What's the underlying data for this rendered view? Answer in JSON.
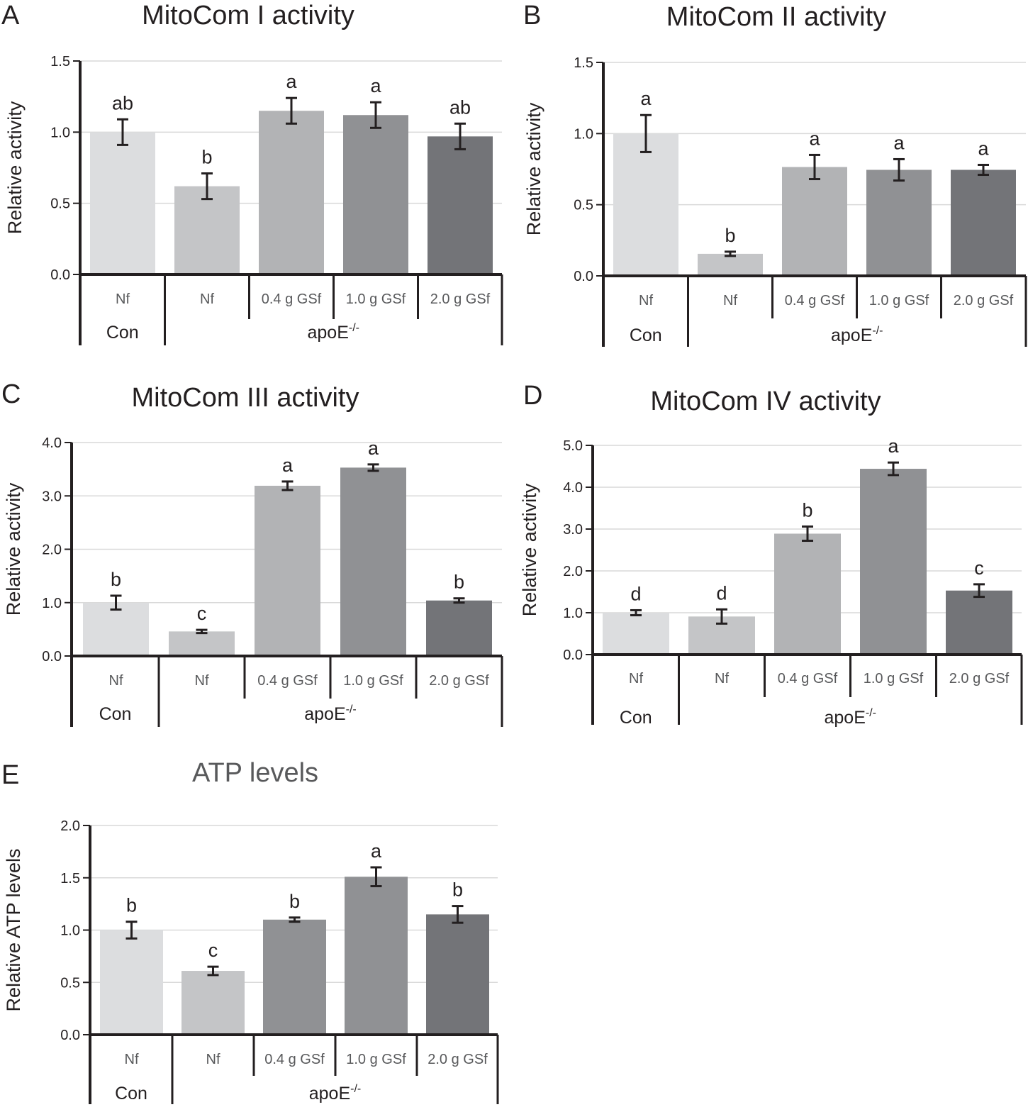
{
  "chart_data": [
    {
      "panel_label": "A",
      "type": "bar",
      "title": "MitoCom I activity",
      "ylabel": "Relative activity",
      "ylim": [
        0,
        1.5
      ],
      "yticks": [
        "0.0",
        "0.5",
        "1.0",
        "1.5"
      ],
      "grid": true,
      "categories": [
        "Nf",
        "Nf",
        "0.4 g GSf",
        "1.0 g GSf",
        "2.0 g GSf"
      ],
      "groups": [
        {
          "label": "Con",
          "count": 1
        },
        {
          "label": "apoE-/-",
          "count": 4
        }
      ],
      "values": [
        1.0,
        0.62,
        1.15,
        1.12,
        0.97
      ],
      "errors": [
        0.09,
        0.09,
        0.09,
        0.09,
        0.09
      ],
      "letters": [
        "ab",
        "b",
        "a",
        "a",
        "ab"
      ],
      "colors": [
        "#dcdddf",
        "#c4c5c7",
        "#b2b3b5",
        "#909194",
        "#737478"
      ]
    },
    {
      "panel_label": "B",
      "type": "bar",
      "title": "MitoCom II activity",
      "ylabel": "Relative activity",
      "ylim": [
        0,
        1.5
      ],
      "yticks": [
        "0.0",
        "0.5",
        "1.0",
        "1.5"
      ],
      "grid": true,
      "categories": [
        "Nf",
        "Nf",
        "0.4 g GSf",
        "1.0 g GSf",
        "2.0 g GSf"
      ],
      "groups": [
        {
          "label": "Con",
          "count": 1
        },
        {
          "label": "apoE-/-",
          "count": 4
        }
      ],
      "values": [
        1.0,
        0.155,
        0.765,
        0.745,
        0.745
      ],
      "errors": [
        0.13,
        0.015,
        0.085,
        0.075,
        0.035
      ],
      "letters": [
        "a",
        "b",
        "a",
        "a",
        "a"
      ],
      "colors": [
        "#dcdddf",
        "#c4c5c7",
        "#b2b3b5",
        "#909194",
        "#737478"
      ]
    },
    {
      "panel_label": "C",
      "type": "bar",
      "title": "MitoCom III activity",
      "ylabel": "Relative activity",
      "ylim": [
        0,
        4.0
      ],
      "yticks": [
        "0.0",
        "1.0",
        "2.0",
        "3.0",
        "4.0"
      ],
      "grid": true,
      "categories": [
        "Nf",
        "Nf",
        "0.4 g GSf",
        "1.0 g GSf",
        "2.0 g GSf"
      ],
      "groups": [
        {
          "label": "Con",
          "count": 1
        },
        {
          "label": "apoE-/-",
          "count": 4
        }
      ],
      "values": [
        1.0,
        0.46,
        3.19,
        3.53,
        1.04
      ],
      "errors": [
        0.13,
        0.03,
        0.08,
        0.06,
        0.04
      ],
      "letters": [
        "b",
        "c",
        "a",
        "a",
        "b"
      ],
      "colors": [
        "#dcdddf",
        "#c4c5c7",
        "#b2b3b5",
        "#909194",
        "#737478"
      ]
    },
    {
      "panel_label": "D",
      "type": "bar",
      "title": "MitoCom IV activity",
      "ylabel": "Relative activity",
      "ylim": [
        0,
        5.0
      ],
      "yticks": [
        "0.0",
        "1.0",
        "2.0",
        "3.0",
        "4.0",
        "5.0"
      ],
      "grid": true,
      "categories": [
        "Nf",
        "Nf",
        "0.4 g GSf",
        "1.0 g GSf",
        "2.0 g GSf"
      ],
      "groups": [
        {
          "label": "Con",
          "count": 1
        },
        {
          "label": "apoE-/-",
          "count": 4
        }
      ],
      "values": [
        1.0,
        0.91,
        2.89,
        4.44,
        1.53
      ],
      "errors": [
        0.06,
        0.17,
        0.17,
        0.15,
        0.15
      ],
      "letters": [
        "d",
        "d",
        "b",
        "a",
        "c"
      ],
      "colors": [
        "#dcdddf",
        "#c4c5c7",
        "#b2b3b5",
        "#909194",
        "#737478"
      ]
    },
    {
      "panel_label": "E",
      "type": "bar",
      "title": "ATP levels",
      "ylabel": "Relative ATP levels",
      "ylim": [
        0,
        2.0
      ],
      "yticks": [
        "0.0",
        "0.5",
        "1.0",
        "1.5",
        "2.0"
      ],
      "grid": true,
      "categories": [
        "Nf",
        "Nf",
        "0.4 g GSf",
        "1.0 g GSf",
        "2.0 g GSf"
      ],
      "groups": [
        {
          "label": "Con",
          "count": 1
        },
        {
          "label": "apoE-/-",
          "count": 4
        }
      ],
      "values": [
        1.0,
        0.61,
        1.1,
        1.51,
        1.15
      ],
      "errors": [
        0.08,
        0.04,
        0.02,
        0.09,
        0.08
      ],
      "letters": [
        "b",
        "c",
        "b",
        "a",
        "b"
      ],
      "colors": [
        "#dcdddf",
        "#c4c5c7",
        "#909194",
        "#909194",
        "#737478"
      ]
    }
  ]
}
